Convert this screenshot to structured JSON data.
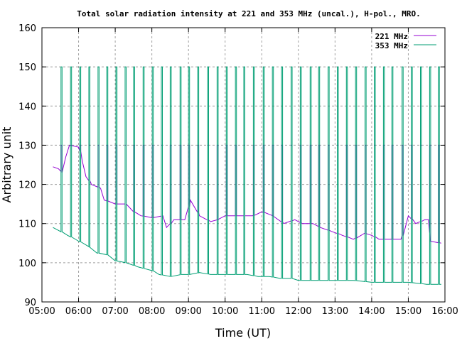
{
  "chart_data": {
    "type": "line",
    "title": "Total solar radiation intensity at 221 and 353 MHz (uncal.), H-pol., MRO.",
    "xlabel": "Time (UT)",
    "ylabel": "Arbitrary unit",
    "xlim_hours": [
      5,
      16
    ],
    "ylim": [
      90,
      160
    ],
    "x_tick_labels": [
      "05:00",
      "06:00",
      "07:00",
      "08:00",
      "09:00",
      "10:00",
      "11:00",
      "12:00",
      "13:00",
      "14:00",
      "15:00",
      "16:00"
    ],
    "y_tick_labels": [
      "90",
      "100",
      "110",
      "120",
      "130",
      "140",
      "150",
      "160"
    ],
    "grid": true,
    "legend_placement": "top-right",
    "series": [
      {
        "name": "221 MHz",
        "color": "#9400d3",
        "baseline": [
          [
            5.3,
            124.5
          ],
          [
            5.45,
            124
          ],
          [
            5.55,
            123
          ],
          [
            5.65,
            127
          ],
          [
            5.75,
            130
          ],
          [
            6.0,
            129.5
          ],
          [
            6.1,
            126
          ],
          [
            6.2,
            122
          ],
          [
            6.35,
            120
          ],
          [
            6.6,
            119
          ],
          [
            6.7,
            116
          ],
          [
            7.0,
            115
          ],
          [
            7.3,
            115
          ],
          [
            7.5,
            113
          ],
          [
            7.7,
            112
          ],
          [
            8.0,
            111.5
          ],
          [
            8.3,
            112
          ],
          [
            8.4,
            109
          ],
          [
            8.6,
            111
          ],
          [
            8.9,
            111
          ],
          [
            9.05,
            116
          ],
          [
            9.3,
            112
          ],
          [
            9.6,
            110.5
          ],
          [
            9.8,
            111
          ],
          [
            10.0,
            112
          ],
          [
            10.3,
            112
          ],
          [
            10.5,
            112
          ],
          [
            10.75,
            112
          ],
          [
            11.0,
            113
          ],
          [
            11.3,
            112
          ],
          [
            11.6,
            110
          ],
          [
            11.9,
            111
          ],
          [
            12.1,
            110
          ],
          [
            12.4,
            110
          ],
          [
            12.6,
            109
          ],
          [
            12.9,
            108
          ],
          [
            13.2,
            107
          ],
          [
            13.5,
            106
          ],
          [
            13.8,
            107.5
          ],
          [
            14.0,
            107
          ],
          [
            14.2,
            106
          ],
          [
            14.5,
            106
          ],
          [
            14.8,
            106
          ],
          [
            15.0,
            112
          ],
          [
            15.2,
            110
          ],
          [
            15.45,
            111
          ],
          [
            15.55,
            111
          ],
          [
            15.6,
            105.5
          ],
          [
            15.9,
            105
          ]
        ],
        "spike_peak": 130
      },
      {
        "name": "353 MHz",
        "color": "#009e73",
        "baseline": [
          [
            5.3,
            109
          ],
          [
            5.5,
            108
          ],
          [
            5.7,
            107
          ],
          [
            6.0,
            105.5
          ],
          [
            6.3,
            104
          ],
          [
            6.5,
            102.5
          ],
          [
            6.8,
            102
          ],
          [
            7.0,
            100.5
          ],
          [
            7.3,
            100
          ],
          [
            7.6,
            99
          ],
          [
            7.8,
            98.5
          ],
          [
            8.0,
            98
          ],
          [
            8.2,
            97
          ],
          [
            8.5,
            96.5
          ],
          [
            8.8,
            97
          ],
          [
            9.0,
            97
          ],
          [
            9.3,
            97.5
          ],
          [
            9.6,
            97
          ],
          [
            10.0,
            97
          ],
          [
            10.3,
            97
          ],
          [
            10.6,
            97
          ],
          [
            10.9,
            96.5
          ],
          [
            11.2,
            96.5
          ],
          [
            11.5,
            96
          ],
          [
            11.8,
            96
          ],
          [
            12.0,
            95.5
          ],
          [
            12.5,
            95.5
          ],
          [
            13.0,
            95.5
          ],
          [
            13.5,
            95.5
          ],
          [
            14.0,
            95
          ],
          [
            14.5,
            95
          ],
          [
            15.0,
            95
          ],
          [
            15.5,
            94.5
          ],
          [
            15.9,
            94.5
          ]
        ],
        "spike_peak": 150
      }
    ],
    "spike_times_hours": [
      5.52,
      5.78,
      6.03,
      6.28,
      6.53,
      6.77,
      7.02,
      7.27,
      7.5,
      7.76,
      8.01,
      8.26,
      8.5,
      8.77,
      9.0,
      9.25,
      9.52,
      9.78,
      10.03,
      10.28,
      10.51,
      10.77,
      11.04,
      11.29,
      11.54,
      11.8,
      12.05,
      12.32,
      12.55,
      12.81,
      13.06,
      13.31,
      13.56,
      13.82,
      14.07,
      14.32,
      14.55,
      14.83,
      15.08,
      15.33,
      15.58,
      15.82
    ]
  }
}
